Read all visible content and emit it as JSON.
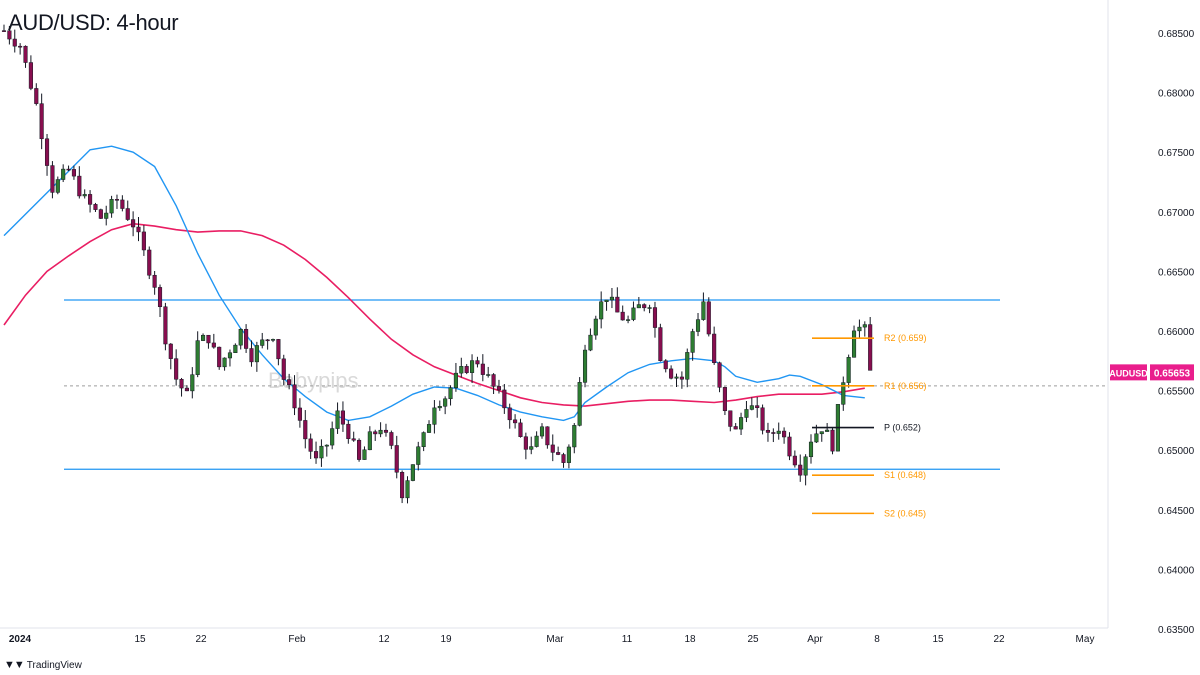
{
  "title": "AUD/USD: 4-hour",
  "footer": {
    "brand": "TradingView"
  },
  "watermark": "Babypips",
  "colors": {
    "up": "#2e7d32",
    "down": "#880e4f",
    "ma_fast": "#2196f3",
    "ma_slow": "#e91e63",
    "range_lines": "#2196f3",
    "pivots": "#ff9800",
    "pivot_point": "#131722",
    "price_tag": "#e91e8c"
  },
  "chart_data": {
    "type": "candlestick",
    "symbol": "AUDUSD",
    "last_price": "0.65653",
    "y_ticks": [
      "0.68500",
      "0.68000",
      "0.67500",
      "0.67000",
      "0.66500",
      "0.66000",
      "0.65500",
      "0.65000",
      "0.64500",
      "0.64000",
      "0.63500"
    ],
    "x_ticks": [
      "2024",
      "15",
      "22",
      "Feb",
      "12",
      "19",
      "Mar",
      "11",
      "18",
      "25",
      "Apr",
      "8",
      "15",
      "22",
      "May"
    ],
    "ylim": [
      0.6349,
      0.6869
    ],
    "range_resistance": 0.6626,
    "range_support": 0.6484,
    "pivot_levels": [
      {
        "label": "R2 (0.659)",
        "value": 0.6594
      },
      {
        "label": "R1 (0.656)",
        "value": 0.6554
      },
      {
        "label": "P (0.652)",
        "value": 0.6519
      },
      {
        "label": "S1 (0.648)",
        "value": 0.6479
      },
      {
        "label": "S2 (0.645)",
        "value": 0.6447
      }
    ],
    "price_path": [
      [
        0,
        0.6852
      ],
      [
        3,
        0.684
      ],
      [
        6,
        0.679
      ],
      [
        9,
        0.672
      ],
      [
        12,
        0.6735
      ],
      [
        15,
        0.671
      ],
      [
        18,
        0.6695
      ],
      [
        21,
        0.671
      ],
      [
        24,
        0.669
      ],
      [
        26,
        0.6665
      ],
      [
        28,
        0.664
      ],
      [
        30,
        0.6595
      ],
      [
        32,
        0.656
      ],
      [
        34,
        0.6545
      ],
      [
        36,
        0.659
      ],
      [
        38,
        0.6595
      ],
      [
        40,
        0.657
      ],
      [
        42,
        0.6585
      ],
      [
        44,
        0.66
      ],
      [
        46,
        0.658
      ],
      [
        48,
        0.659
      ],
      [
        50,
        0.6598
      ],
      [
        52,
        0.656
      ],
      [
        54,
        0.654
      ],
      [
        56,
        0.651
      ],
      [
        58,
        0.649
      ],
      [
        60,
        0.6505
      ],
      [
        62,
        0.653
      ],
      [
        64,
        0.6515
      ],
      [
        66,
        0.649
      ],
      [
        68,
        0.651
      ],
      [
        70,
        0.652
      ],
      [
        72,
        0.65
      ],
      [
        74,
        0.6465
      ],
      [
        76,
        0.649
      ],
      [
        78,
        0.651
      ],
      [
        80,
        0.654
      ],
      [
        82,
        0.6545
      ],
      [
        84,
        0.656
      ],
      [
        86,
        0.657
      ],
      [
        88,
        0.6575
      ],
      [
        90,
        0.656
      ],
      [
        92,
        0.6545
      ],
      [
        94,
        0.653
      ],
      [
        96,
        0.651
      ],
      [
        98,
        0.65
      ],
      [
        100,
        0.6515
      ],
      [
        102,
        0.65
      ],
      [
        104,
        0.649
      ],
      [
        106,
        0.652
      ],
      [
        108,
        0.659
      ],
      [
        110,
        0.6615
      ],
      [
        112,
        0.663
      ],
      [
        114,
        0.6615
      ],
      [
        116,
        0.6608
      ],
      [
        118,
        0.662
      ],
      [
        120,
        0.6625
      ],
      [
        122,
        0.658
      ],
      [
        124,
        0.6565
      ],
      [
        126,
        0.656
      ],
      [
        128,
        0.66
      ],
      [
        130,
        0.6625
      ],
      [
        132,
        0.657
      ],
      [
        134,
        0.653
      ],
      [
        136,
        0.6515
      ],
      [
        138,
        0.654
      ],
      [
        140,
        0.653
      ],
      [
        142,
        0.651
      ],
      [
        144,
        0.652
      ],
      [
        146,
        0.65
      ],
      [
        148,
        0.6485
      ],
      [
        150,
        0.651
      ],
      [
        152,
        0.652
      ],
      [
        154,
        0.6505
      ],
      [
        156,
        0.656
      ],
      [
        158,
        0.6605
      ],
      [
        160,
        0.66
      ],
      [
        161,
        0.6565
      ]
    ],
    "ma_fast": [
      [
        0,
        0.668
      ],
      [
        10,
        0.6725
      ],
      [
        16,
        0.6752
      ],
      [
        20,
        0.6755
      ],
      [
        24,
        0.675
      ],
      [
        28,
        0.6738
      ],
      [
        32,
        0.6705
      ],
      [
        36,
        0.6665
      ],
      [
        40,
        0.663
      ],
      [
        44,
        0.6602
      ],
      [
        48,
        0.658
      ],
      [
        52,
        0.656
      ],
      [
        56,
        0.6545
      ],
      [
        60,
        0.6532
      ],
      [
        64,
        0.6525
      ],
      [
        68,
        0.6528
      ],
      [
        72,
        0.6537
      ],
      [
        76,
        0.6547
      ],
      [
        80,
        0.6553
      ],
      [
        84,
        0.6552
      ],
      [
        88,
        0.6546
      ],
      [
        92,
        0.6538
      ],
      [
        96,
        0.6532
      ],
      [
        100,
        0.6528
      ],
      [
        104,
        0.6525
      ],
      [
        106,
        0.6528
      ],
      [
        108,
        0.654
      ],
      [
        112,
        0.6553
      ],
      [
        116,
        0.6565
      ],
      [
        120,
        0.6572
      ],
      [
        124,
        0.6575
      ],
      [
        128,
        0.6577
      ],
      [
        132,
        0.6575
      ],
      [
        134,
        0.657
      ],
      [
        136,
        0.6562
      ],
      [
        140,
        0.6557
      ],
      [
        144,
        0.656
      ],
      [
        146,
        0.6563
      ],
      [
        148,
        0.6562
      ],
      [
        152,
        0.6555
      ],
      [
        156,
        0.6546
      ],
      [
        160,
        0.6544
      ]
    ],
    "ma_slow": [
      [
        0,
        0.6605
      ],
      [
        4,
        0.663
      ],
      [
        8,
        0.665
      ],
      [
        12,
        0.6663
      ],
      [
        16,
        0.6675
      ],
      [
        20,
        0.6685
      ],
      [
        24,
        0.669
      ],
      [
        28,
        0.6688
      ],
      [
        32,
        0.6685
      ],
      [
        36,
        0.6683
      ],
      [
        40,
        0.6684
      ],
      [
        44,
        0.6684
      ],
      [
        48,
        0.668
      ],
      [
        52,
        0.6672
      ],
      [
        56,
        0.666
      ],
      [
        60,
        0.6645
      ],
      [
        64,
        0.6628
      ],
      [
        68,
        0.661
      ],
      [
        72,
        0.6593
      ],
      [
        76,
        0.658
      ],
      [
        80,
        0.657
      ],
      [
        84,
        0.6563
      ],
      [
        88,
        0.6556
      ],
      [
        92,
        0.655
      ],
      [
        96,
        0.6544
      ],
      [
        100,
        0.654
      ],
      [
        104,
        0.6538
      ],
      [
        108,
        0.6537
      ],
      [
        112,
        0.6539
      ],
      [
        116,
        0.6541
      ],
      [
        120,
        0.6542
      ],
      [
        124,
        0.6542
      ],
      [
        128,
        0.6541
      ],
      [
        132,
        0.654
      ],
      [
        136,
        0.6542
      ],
      [
        140,
        0.6545
      ],
      [
        144,
        0.6547
      ],
      [
        148,
        0.6547
      ],
      [
        152,
        0.6547
      ],
      [
        156,
        0.6549
      ],
      [
        160,
        0.6552
      ]
    ]
  }
}
